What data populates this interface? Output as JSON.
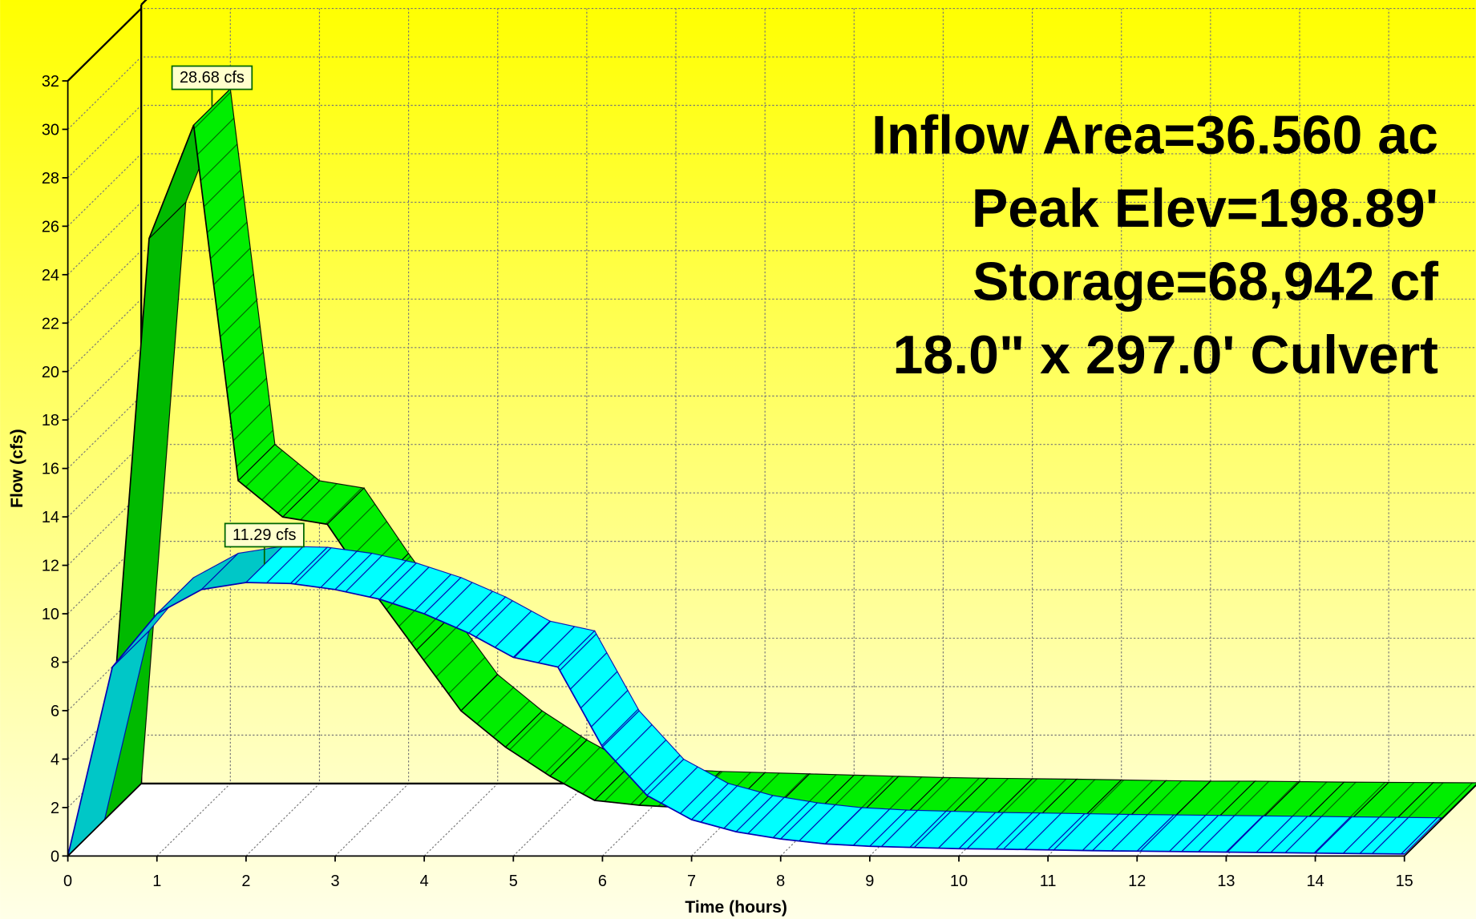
{
  "chart_data": {
    "type": "line",
    "x_label": "Time  (hours)",
    "y_label": "Flow  (cfs)",
    "info_lines": [
      "Inflow Area=36.560 ac",
      "Peak Elev=198.89'",
      "Storage=68,942 cf",
      "18.0\" x 297.0' Culvert"
    ],
    "x": [
      0,
      0.5,
      1,
      1.5,
      2,
      2.5,
      3,
      3.5,
      4,
      4.5,
      5,
      5.5,
      6,
      6.5,
      7,
      7.5,
      8,
      8.5,
      9,
      9.5,
      10,
      10.5,
      11,
      11.5,
      12,
      12.5,
      13,
      13.5,
      14,
      14.5,
      15
    ],
    "series": [
      {
        "color": "#00ee00",
        "values": [
          0,
          24,
          28.68,
          14,
          12.5,
          12.2,
          9.5,
          7,
          4.5,
          3,
          1.8,
          0.8,
          0.6,
          0.5,
          0.45,
          0.4,
          0.35,
          0.3,
          0.25,
          0.22,
          0.2,
          0.18,
          0.15,
          0.12,
          0.1,
          0.1,
          0.08,
          0.06,
          0.05,
          0.04,
          0.03
        ]
      },
      {
        "color": "#00ffff",
        "values": [
          0,
          7.8,
          10,
          11,
          11.29,
          11.25,
          11,
          10.6,
          10,
          9.2,
          8.2,
          7.8,
          4.5,
          2.5,
          1.5,
          1,
          0.7,
          0.5,
          0.4,
          0.35,
          0.3,
          0.28,
          0.25,
          0.22,
          0.2,
          0.18,
          0.16,
          0.14,
          0.12,
          0.1,
          0.08
        ]
      }
    ],
    "annotations": [
      {
        "text": "28.68 cfs",
        "x": 1,
        "y": 28.68,
        "series": 0
      },
      {
        "text": "11.29 cfs",
        "x": 2,
        "y": 11.29,
        "series": 1
      }
    ],
    "xlim": [
      0,
      15
    ],
    "xticks": [
      0,
      1,
      2,
      3,
      4,
      5,
      6,
      7,
      8,
      9,
      10,
      11,
      12,
      13,
      14,
      15
    ],
    "ylim": [
      0,
      32
    ],
    "yticks": [
      0,
      2,
      4,
      6,
      8,
      10,
      12,
      14,
      16,
      18,
      20,
      22,
      24,
      26,
      28,
      30,
      32
    ],
    "grid": true
  }
}
